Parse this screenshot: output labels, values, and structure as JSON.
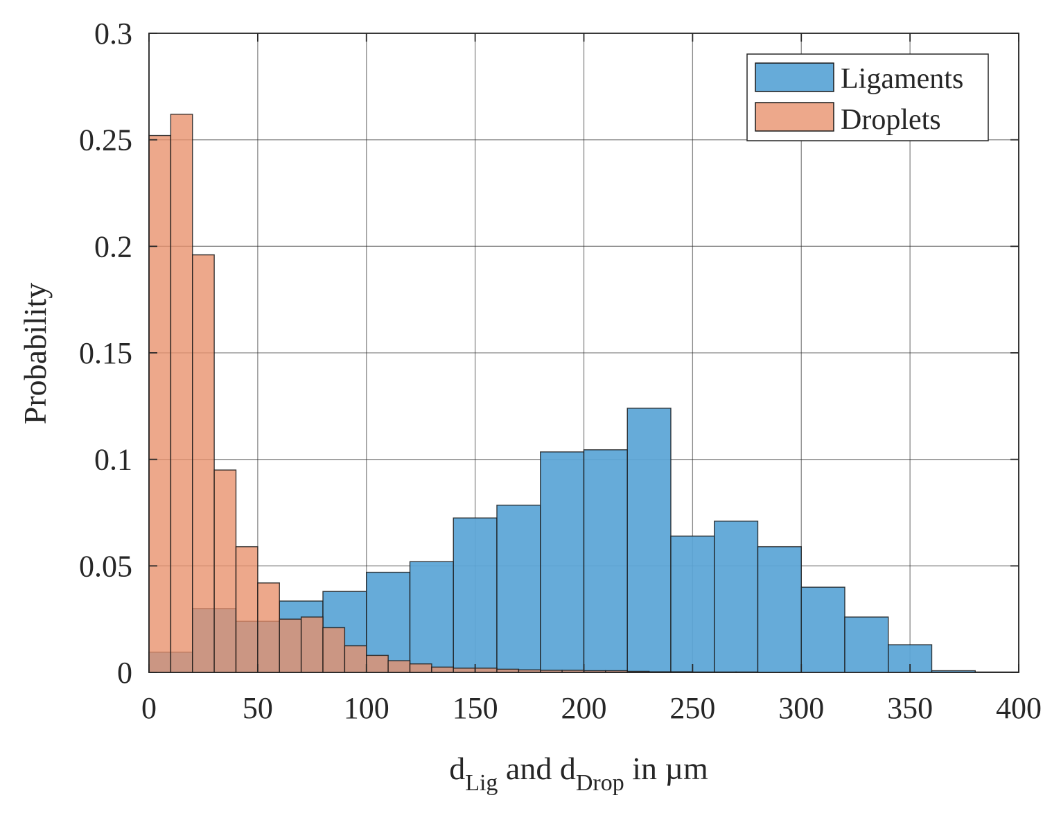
{
  "chart_data": {
    "type": "bar",
    "title": "",
    "xlabel": {
      "d1": "d",
      "sub1": "Lig",
      "mid": " and d",
      "sub2": "Drop",
      "end": " in µm"
    },
    "ylabel": "Probability",
    "xlim": [
      0,
      400
    ],
    "ylim": [
      0,
      0.3
    ],
    "xticks": [
      0,
      50,
      100,
      150,
      200,
      250,
      300,
      350,
      400
    ],
    "xtick_labels": [
      "0",
      "50",
      "100",
      "150",
      "200",
      "250",
      "300",
      "350",
      "400"
    ],
    "yticks": [
      0,
      0.05,
      0.1,
      0.15,
      0.2,
      0.25,
      0.3
    ],
    "ytick_labels": [
      "0",
      "0.05",
      "0.1",
      "0.15",
      "0.2",
      "0.25",
      "0.3"
    ],
    "grid": true,
    "legend_position": "top-right",
    "series": [
      {
        "name": "Ligaments",
        "color": "#5aa5d6",
        "bin_edges": [
          0,
          20,
          40,
          60,
          80,
          100,
          120,
          140,
          160,
          180,
          200,
          220,
          240,
          260,
          280,
          300,
          320,
          340,
          360,
          380,
          400
        ],
        "values": [
          0.0095,
          0.03,
          0.024,
          0.0335,
          0.038,
          0.047,
          0.052,
          0.0725,
          0.0785,
          0.1035,
          0.1045,
          0.124,
          0.064,
          0.071,
          0.059,
          0.04,
          0.026,
          0.013,
          0.0008,
          0.0002
        ]
      },
      {
        "name": "Droplets",
        "color": "#e8906a",
        "bin_edges": [
          0,
          10,
          20,
          30,
          40,
          50,
          60,
          70,
          80,
          90,
          100,
          110,
          120,
          130,
          140,
          150,
          160,
          170,
          180,
          190,
          200,
          210,
          220,
          230,
          240,
          250,
          260,
          270,
          280,
          290,
          300
        ],
        "values": [
          0.252,
          0.262,
          0.196,
          0.095,
          0.059,
          0.042,
          0.025,
          0.026,
          0.021,
          0.0125,
          0.008,
          0.0055,
          0.004,
          0.0025,
          0.002,
          0.002,
          0.0015,
          0.0012,
          0.001,
          0.001,
          0.0008,
          0.0008,
          0.0005,
          0.0003,
          0.0003,
          0.0002,
          0.0002,
          0.0002,
          0.0001,
          0.0001
        ]
      }
    ]
  }
}
